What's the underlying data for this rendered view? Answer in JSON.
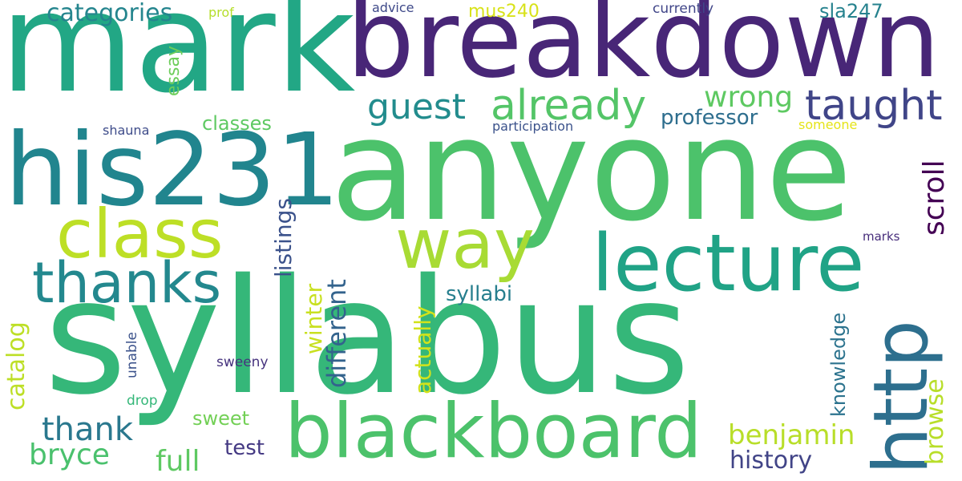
{
  "words": [
    {
      "id": "anyone",
      "text": "anyone",
      "color": "#4cc26b"
    },
    {
      "id": "syllabus",
      "text": "syllabus",
      "color": "#35b779"
    },
    {
      "id": "breakdown",
      "text": "breakdown",
      "color": "#482677"
    },
    {
      "id": "mark",
      "text": "mark",
      "color": "#22a785"
    },
    {
      "id": "his231",
      "text": "his231",
      "color": "#21858e"
    },
    {
      "id": "lecture",
      "text": "lecture",
      "color": "#20a386"
    },
    {
      "id": "blackboard",
      "text": "blackboard",
      "color": "#4cc26b"
    },
    {
      "id": "http",
      "text": "http",
      "color": "#2d6f8e"
    },
    {
      "id": "class",
      "text": "class",
      "color": "#bddf26"
    },
    {
      "id": "way",
      "text": "way",
      "color": "#a8db34"
    },
    {
      "id": "thanks",
      "text": "thanks",
      "color": "#23888e"
    },
    {
      "id": "already",
      "text": "already",
      "color": "#54c568"
    },
    {
      "id": "taught",
      "text": "taught",
      "color": "#404588"
    },
    {
      "id": "guest",
      "text": "guest",
      "color": "#228c8d"
    },
    {
      "id": "categories",
      "text": "categories",
      "color": "#25858e"
    },
    {
      "id": "wrong",
      "text": "wrong",
      "color": "#5ec962"
    },
    {
      "id": "scroll",
      "text": "scroll",
      "color": "#440154"
    },
    {
      "id": "professor",
      "text": "professor",
      "color": "#2e6e8e"
    },
    {
      "id": "classes",
      "text": "classes",
      "color": "#5ec962"
    },
    {
      "id": "listings",
      "text": "listings",
      "color": "#3b528b"
    },
    {
      "id": "catalog",
      "text": "catalog",
      "color": "#bddf26"
    },
    {
      "id": "winter",
      "text": "winter",
      "color": "#c8e020"
    },
    {
      "id": "different",
      "text": "different",
      "color": "#33638d"
    },
    {
      "id": "actually",
      "text": "actually",
      "color": "#d2e21b"
    },
    {
      "id": "syllabi",
      "text": "syllabi",
      "color": "#277f8e"
    },
    {
      "id": "benjamin",
      "text": "benjamin",
      "color": "#b8de29"
    },
    {
      "id": "browse",
      "text": "browse",
      "color": "#b8de29"
    },
    {
      "id": "knowledge",
      "text": "knowledge",
      "color": "#2c738e"
    },
    {
      "id": "history",
      "text": "history",
      "color": "#414487"
    },
    {
      "id": "thank",
      "text": "thank",
      "color": "#2a788e"
    },
    {
      "id": "bryce",
      "text": "bryce",
      "color": "#4ac16d"
    },
    {
      "id": "full",
      "text": "full",
      "color": "#5ec962"
    },
    {
      "id": "test",
      "text": "test",
      "color": "#443983"
    },
    {
      "id": "sweet",
      "text": "sweet",
      "color": "#73d056"
    },
    {
      "id": "essay",
      "text": "essay",
      "color": "#6ccd5a"
    },
    {
      "id": "prof",
      "text": "prof",
      "color": "#b5de2b"
    },
    {
      "id": "advice",
      "text": "advice",
      "color": "#3e4989"
    },
    {
      "id": "mus240",
      "text": "mus240",
      "color": "#d8e219"
    },
    {
      "id": "currently",
      "text": "currently",
      "color": "#404588"
    },
    {
      "id": "sla247",
      "text": "sla247",
      "color": "#26828e"
    },
    {
      "id": "shauna",
      "text": "shauna",
      "color": "#3e4c8a"
    },
    {
      "id": "participation",
      "text": "participation",
      "color": "#3b528b"
    },
    {
      "id": "someone",
      "text": "someone",
      "color": "#e5e419"
    },
    {
      "id": "marks",
      "text": "marks",
      "color": "#472d7b"
    },
    {
      "id": "unable",
      "text": "unable",
      "color": "#3b528b"
    },
    {
      "id": "drop",
      "text": "drop",
      "color": "#35b779"
    },
    {
      "id": "sweeny",
      "text": "sweeny",
      "color": "#46337e"
    }
  ]
}
